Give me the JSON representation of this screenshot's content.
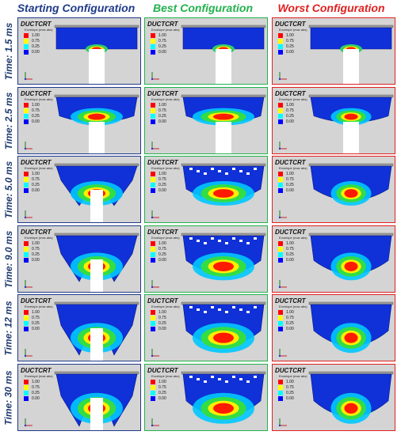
{
  "columns": [
    {
      "title": "Starting Configuration",
      "color": "#1f3a8a"
    },
    {
      "title": "Best Configuration",
      "color": "#22b14c"
    },
    {
      "title": "Worst Configuration",
      "color": "#e02020"
    }
  ],
  "rows": [
    {
      "label": "Time: 1.5 ms"
    },
    {
      "label": "Time: 2.5 ms"
    },
    {
      "label": "Time: 5.0 ms"
    },
    {
      "label": "Time: 9.0 ms"
    },
    {
      "label": "Time: 12 ms"
    },
    {
      "label": "Time: 30 ms"
    }
  ],
  "legend": {
    "variable": "DUCTCRT",
    "subtitle": "Envelope (max abs)",
    "entries": [
      {
        "value": "1.00",
        "color": "#ff0000"
      },
      {
        "value": "0.75",
        "color": "#ffff00"
      },
      {
        "value": "0.25",
        "color": "#00ffff"
      },
      {
        "value": "0.00",
        "color": "#0000ff"
      }
    ]
  },
  "colors": {
    "panel_bg": "#d4d4d4",
    "row_label": "#1f3a6e"
  },
  "icons": {
    "axis_triad": "axis-triad-icon"
  }
}
